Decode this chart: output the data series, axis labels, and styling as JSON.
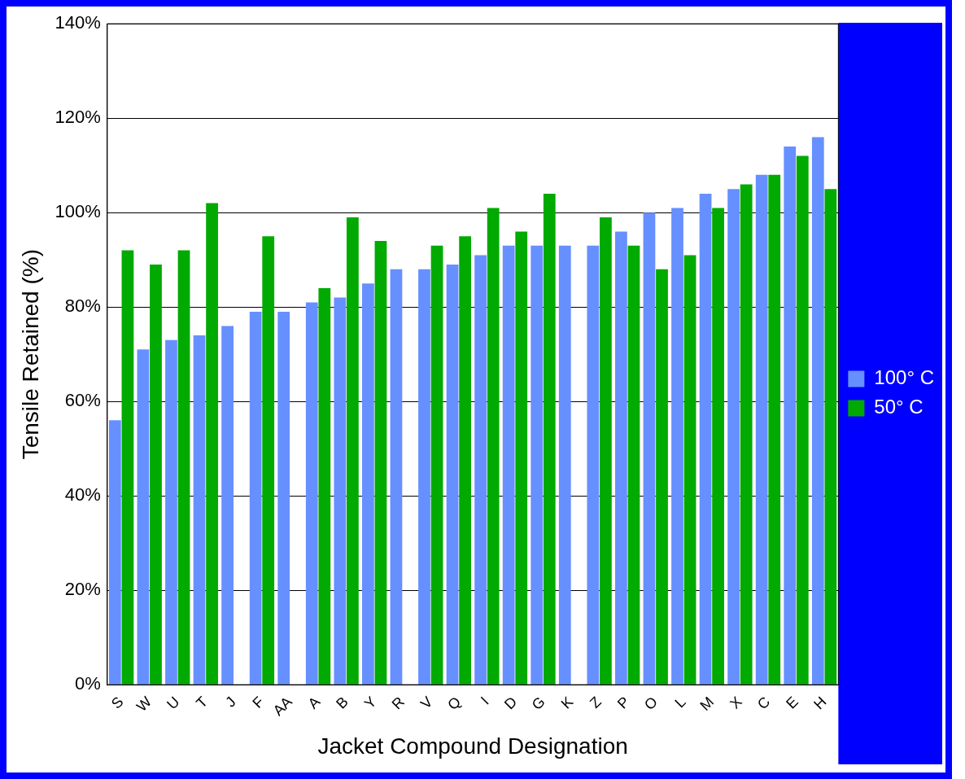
{
  "chart_data": {
    "type": "bar",
    "xlabel": "Jacket Compound Designation",
    "ylabel": "Tensile Retained (%)",
    "categories": [
      "S",
      "W",
      "U",
      "T",
      "J",
      "F",
      "AA",
      "A",
      "B",
      "Y",
      "R",
      "V",
      "Q",
      "I",
      "D",
      "G",
      "K",
      "Z",
      "P",
      "O",
      "L",
      "M",
      "X",
      "C",
      "E",
      "H"
    ],
    "series": [
      {
        "name": "100° C",
        "color": "#6690ff",
        "values": [
          56,
          71,
          73,
          74,
          76,
          79,
          79,
          81,
          82,
          85,
          88,
          88,
          89,
          91,
          93,
          93,
          93,
          93,
          96,
          100,
          101,
          104,
          105,
          108,
          114,
          116
        ]
      },
      {
        "name": "50° C",
        "color": "#00aa00",
        "values": [
          92,
          89,
          92,
          102,
          0,
          95,
          0,
          84,
          99,
          94,
          0,
          93,
          95,
          101,
          96,
          104,
          0,
          99,
          93,
          88,
          91,
          101,
          106,
          108,
          112,
          105
        ]
      }
    ],
    "ylim": [
      0,
      140
    ],
    "yticks": [
      {
        "value": 0,
        "label": "0%"
      },
      {
        "value": 20,
        "label": "20%"
      },
      {
        "value": 40,
        "label": "40%"
      },
      {
        "value": 60,
        "label": "60%"
      },
      {
        "value": 80,
        "label": "80%"
      },
      {
        "value": 100,
        "label": "100%"
      },
      {
        "value": 120,
        "label": "120%"
      },
      {
        "value": 140,
        "label": "140%"
      }
    ],
    "grid": "y",
    "legend": "right"
  }
}
